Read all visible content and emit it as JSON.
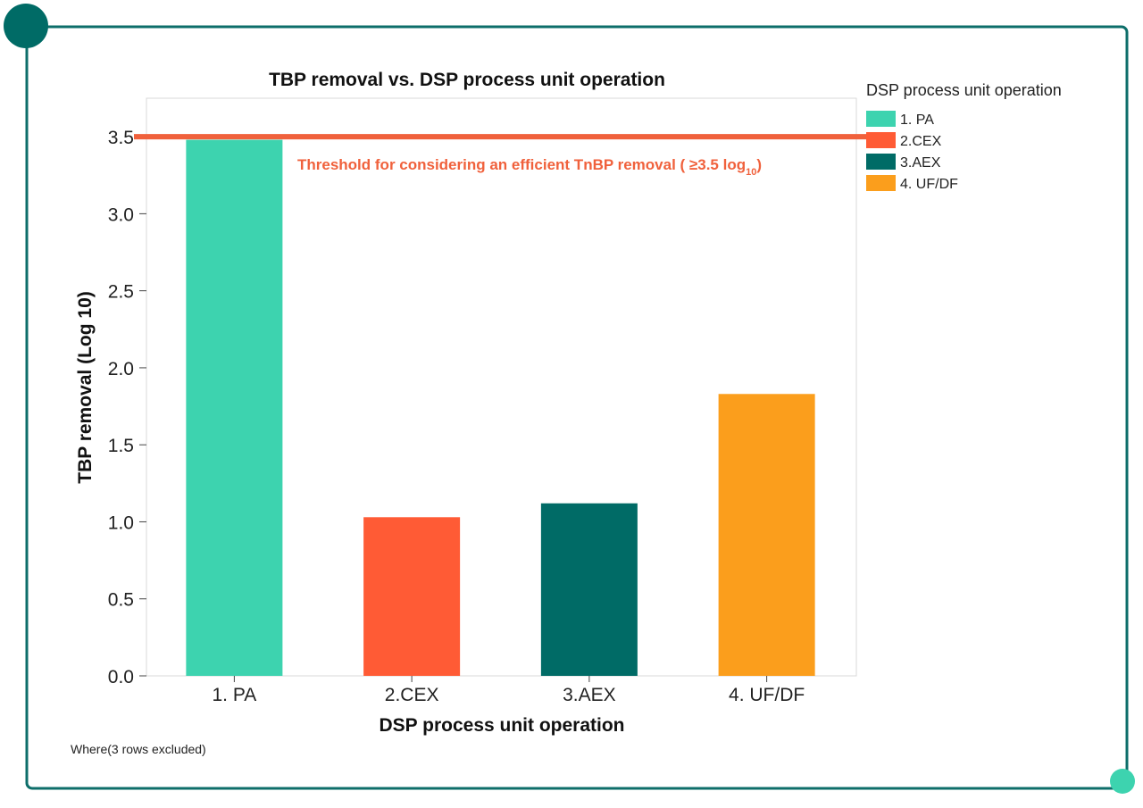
{
  "colors": {
    "frame": "#3ecfae",
    "dot_dark": "#006b66",
    "dot_light": "#3dd3af",
    "frame_stroke": "#0d6e6a"
  },
  "chart_data": {
    "type": "bar",
    "title": "TBP removal vs. DSP process unit operation",
    "xlabel": "DSP process unit operation",
    "ylabel": "TBP removal (Log 10)",
    "categories": [
      "1. PA",
      "2.CEX",
      "3.AEX",
      "4. UF/DF"
    ],
    "values": [
      3.48,
      1.03,
      1.12,
      1.83
    ],
    "bar_colors": [
      "#3dd3af",
      "#ff5b35",
      "#006b66",
      "#fb9e1c"
    ],
    "ylim": [
      0,
      3.75
    ],
    "yticks": [
      "0.0",
      "0.5",
      "1.0",
      "1.5",
      "2.0",
      "2.5",
      "3.0",
      "3.5"
    ],
    "ytick_values": [
      0,
      0.5,
      1.0,
      1.5,
      2.0,
      2.5,
      3.0,
      3.5
    ],
    "threshold": {
      "value": 3.5,
      "color": "#f0613c",
      "label_main": "Threshold for considering an efficient TnBP removal ( ≥3.5 log",
      "label_sub": "10",
      "label_end": ")"
    },
    "legend": {
      "title": "DSP process unit operation",
      "placement": "right",
      "items": [
        "1. PA",
        "2.CEX",
        "3.AEX",
        "4. UF/DF"
      ]
    },
    "grid": false,
    "footnote": "Where(3 rows excluded)"
  }
}
